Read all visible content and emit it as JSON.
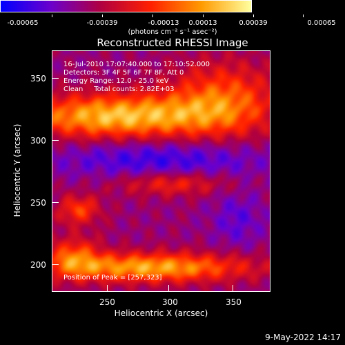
{
  "chart_data": {
    "type": "heatmap",
    "title": "Reconstructed RHESSI Image",
    "xlabel": "Heliocentric X (arcsec)",
    "ylabel": "Heliocentric Y (arcsec)",
    "xlim": [
      205,
      395
    ],
    "ylim": [
      180,
      372
    ],
    "x_ticks": [
      250,
      300,
      350
    ],
    "y_ticks": [
      200,
      250,
      300,
      350
    ],
    "colorbar": {
      "ticks": [
        "-0.00065",
        "-0.00039",
        "-0.00013",
        "0.00013",
        "0.00039",
        "0.00065"
      ],
      "units": "(photons cm⁻² s⁻¹ asec⁻²)",
      "colors": [
        "#0000ff",
        "#6b00cc",
        "#b00040",
        "#ff2000",
        "#ff9a00",
        "#ffffa0"
      ]
    },
    "annotations": {
      "time_range": "16-Jul-2010 17:07:40.000 to 17:10:52.000",
      "detectors": "Detectors: 3F 4F 5F 6F 7F 8F, Att 0",
      "energy_range": "Energy Range: 12.0 - 25.0 keV",
      "clean_counts": "Clean     Total counts: 2.82E+03",
      "peak": "Position of Peak = [257,323]"
    },
    "date_stamp": "9-May-2022 14:17"
  }
}
